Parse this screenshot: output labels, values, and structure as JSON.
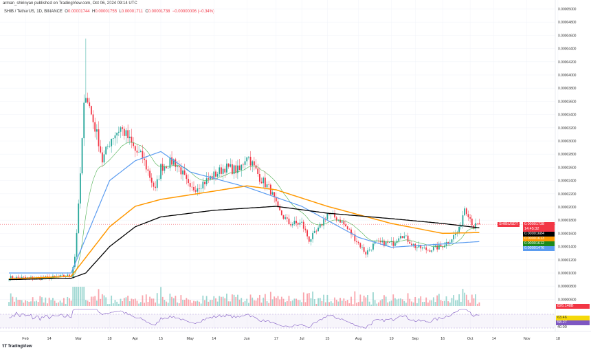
{
  "header": {
    "published": "arman_shirinyan published on TradingView.com, Oct 06, 2024 09:14 UTC",
    "symbol": "SHIB / TetherUS, 1D, BINANCE",
    "o_label": "O",
    "o": "0.00001744",
    "h_label": "H",
    "h": "0.00001755",
    "l_label": "L",
    "l": "0.00001711",
    "c_label": "C",
    "c": "0.00001738",
    "chg": "−0.00000006 (−0.34%)"
  },
  "tags": {
    "symbol": "SHIBUSDT",
    "price": "0.00001738",
    "countdown": "14:45:32",
    "ma_black": "0.00001684",
    "ma_orange": "0.00001613",
    "ma_green": "0.00001612",
    "ma_blue": "0.00001476",
    "volume": "826.148B",
    "rsi_a": "63.46",
    "rsi_b": "58.27",
    "rsi_level": "40.00"
  },
  "footer": {
    "brand": "TradingView"
  },
  "colors": {
    "up": "#26a69a",
    "down": "#f23645",
    "black": "#000000",
    "orange": "#ff9800",
    "blue": "#5b9cf0",
    "green": "#4caf50",
    "rsi": "#7e57c2"
  },
  "chart_data": {
    "type": "candlestick",
    "price_unit": "1e-8 USDT",
    "y_ticks": [
      "0.00005000",
      "0.00004800",
      "0.00004600",
      "0.00004400",
      "0.00004200",
      "0.00004000",
      "0.00003800",
      "0.00003600",
      "0.00003400",
      "0.00003200",
      "0.00003000",
      "0.00002800",
      "0.00002600",
      "0.00002400",
      "0.00002200",
      "0.00002000",
      "0.00001800",
      "0.00001600",
      "0.00001400",
      "0.00001200",
      "0.00001000",
      "0.00000800",
      "0.00000600"
    ],
    "x_ticks": [
      [
        "Feb",
        "02-01"
      ],
      [
        "14",
        "02-14"
      ],
      [
        "Mar",
        "03-01"
      ],
      [
        "18",
        "03-18"
      ],
      [
        "Apr",
        "04-01"
      ],
      [
        "15",
        "04-15"
      ],
      [
        "May",
        "05-01"
      ],
      [
        "14",
        "05-14"
      ],
      [
        "Jun",
        "06-01"
      ],
      [
        "17",
        "06-17"
      ],
      [
        "Jul",
        "07-01"
      ],
      [
        "15",
        "07-15"
      ],
      [
        "Aug",
        "08-01"
      ],
      [
        "19",
        "08-19"
      ],
      [
        "Sep",
        "09-01"
      ],
      [
        "16",
        "09-16"
      ],
      [
        "Oct",
        "10-01"
      ],
      [
        "14",
        "10-14"
      ],
      [
        "Nov",
        "11-01"
      ],
      [
        "18",
        "11-18"
      ]
    ],
    "close": [
      [
        "01-23",
        930
      ],
      [
        "02-10",
        920
      ],
      [
        "02-26",
        960
      ],
      [
        "02-28",
        1250
      ],
      [
        "03-01",
        2000
      ],
      [
        "03-04",
        3500
      ],
      [
        "03-05",
        3750
      ],
      [
        "03-08",
        3400
      ],
      [
        "03-12",
        3000
      ],
      [
        "03-14",
        2700
      ],
      [
        "03-19",
        3050
      ],
      [
        "03-24",
        3200
      ],
      [
        "03-28",
        3050
      ],
      [
        "04-01",
        2850
      ],
      [
        "04-05",
        2750
      ],
      [
        "04-12",
        2250
      ],
      [
        "04-15",
        2600
      ],
      [
        "04-22",
        2700
      ],
      [
        "04-26",
        2550
      ],
      [
        "05-01",
        2250
      ],
      [
        "05-10",
        2400
      ],
      [
        "05-20",
        2600
      ],
      [
        "05-28",
        2550
      ],
      [
        "06-01",
        2800
      ],
      [
        "06-05",
        2600
      ],
      [
        "06-08",
        2450
      ],
      [
        "06-14",
        2250
      ],
      [
        "06-18",
        1950
      ],
      [
        "06-24",
        1750
      ],
      [
        "07-01",
        1750
      ],
      [
        "07-05",
        1500
      ],
      [
        "07-10",
        1650
      ],
      [
        "07-15",
        1900
      ],
      [
        "07-22",
        1800
      ],
      [
        "07-28",
        1600
      ],
      [
        "08-05",
        1300
      ],
      [
        "08-10",
        1450
      ],
      [
        "08-20",
        1450
      ],
      [
        "08-24",
        1600
      ],
      [
        "09-01",
        1400
      ],
      [
        "09-08",
        1350
      ],
      [
        "09-15",
        1400
      ],
      [
        "09-20",
        1500
      ],
      [
        "09-25",
        1650
      ],
      [
        "09-28",
        2000
      ],
      [
        "09-30",
        1900
      ],
      [
        "10-03",
        1700
      ],
      [
        "10-06",
        1738
      ]
    ],
    "ma_black": [
      [
        "01-23",
        900
      ],
      [
        "02-26",
        920
      ],
      [
        "03-05",
        1000
      ],
      [
        "03-18",
        1400
      ],
      [
        "04-01",
        1700
      ],
      [
        "04-15",
        1850
      ],
      [
        "05-14",
        1950
      ],
      [
        "06-17",
        2010
      ],
      [
        "07-15",
        1906
      ],
      [
        "08-19",
        1823
      ],
      [
        "09-16",
        1750
      ],
      [
        "10-06",
        1684
      ]
    ],
    "ma_orange": [
      [
        "01-23",
        910
      ],
      [
        "02-26",
        950
      ],
      [
        "03-18",
        1700
      ],
      [
        "04-01",
        2010
      ],
      [
        "04-15",
        2115
      ],
      [
        "05-14",
        2240
      ],
      [
        "06-01",
        2320
      ],
      [
        "06-17",
        2260
      ],
      [
        "07-15",
        2010
      ],
      [
        "08-19",
        1750
      ],
      [
        "09-16",
        1600
      ],
      [
        "10-06",
        1613
      ]
    ],
    "ma_blue": [
      [
        "01-23",
        1000
      ],
      [
        "02-26",
        1000
      ],
      [
        "03-18",
        2400
      ],
      [
        "04-01",
        2700
      ],
      [
        "04-15",
        2840
      ],
      [
        "05-01",
        2530
      ],
      [
        "06-01",
        2300
      ],
      [
        "07-01",
        2010
      ],
      [
        "08-01",
        1540
      ],
      [
        "08-19",
        1390
      ],
      [
        "09-16",
        1440
      ],
      [
        "10-06",
        1476
      ]
    ]
  }
}
